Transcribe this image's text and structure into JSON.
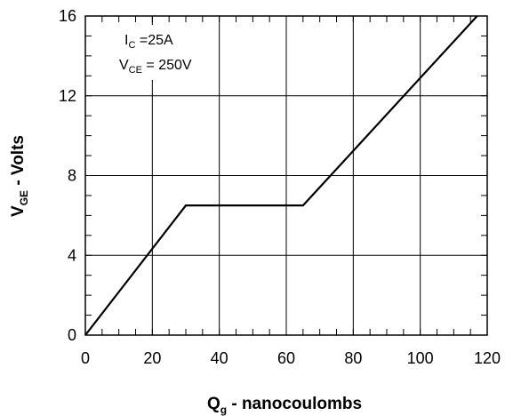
{
  "chart_data": {
    "type": "line",
    "xlabel": {
      "main": "Q",
      "sub": "g",
      "rest": " - nanocoulombs"
    },
    "ylabel": {
      "main": "V",
      "sub": "GE",
      "rest": " - Volts"
    },
    "xlim": [
      0,
      120
    ],
    "ylim": [
      0,
      16
    ],
    "x_ticks": [
      0,
      20,
      40,
      60,
      80,
      100,
      120
    ],
    "y_ticks": [
      0,
      4,
      8,
      12,
      16
    ],
    "x_tick_labels": [
      "0",
      "20",
      "40",
      "60",
      "80",
      "100",
      "120"
    ],
    "y_tick_labels": [
      "0",
      "4",
      "8",
      "12",
      "16"
    ],
    "grid": true,
    "series": [
      {
        "x": [
          0,
          30,
          65,
          117
        ],
        "y": [
          0,
          6.5,
          6.5,
          16
        ]
      }
    ],
    "annotations": [
      {
        "main": "I",
        "sub": "C",
        "rest": " =25A"
      },
      {
        "main": "V",
        "sub": "CE",
        "rest": " = 250V"
      }
    ]
  }
}
